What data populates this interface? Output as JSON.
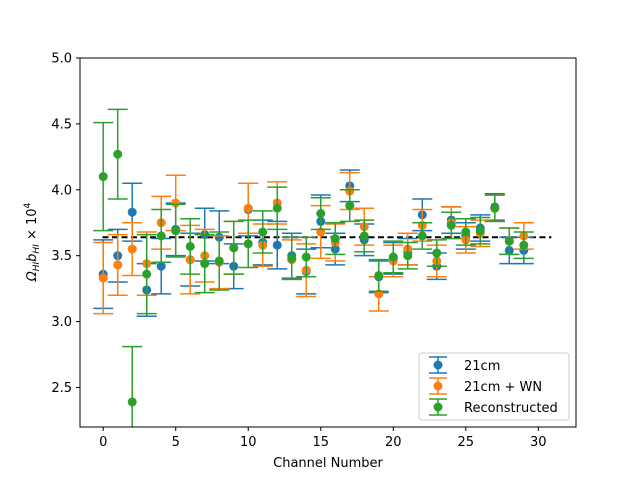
{
  "chart_data": {
    "type": "scatter",
    "title": "",
    "xlabel": "Channel Number",
    "ylabel": "Ω_HI b_HI × 10^4",
    "ylabel_parts": {
      "main": "Ω",
      "sub1": "HI",
      "mid": "b",
      "sub2": "HI",
      "times": " × 10",
      "sup": "4"
    },
    "xlim": [
      -1.6,
      32.6
    ],
    "ylim": [
      2.2,
      5.0
    ],
    "xticks": [
      0,
      5,
      10,
      15,
      20,
      25,
      30
    ],
    "xtick_labels": [
      "0",
      "5",
      "10",
      "15",
      "20",
      "25",
      "30"
    ],
    "yticks": [
      2.5,
      3.0,
      3.5,
      4.0,
      4.5,
      5.0
    ],
    "ytick_labels": [
      "2.5",
      "3.0",
      "3.5",
      "4.0",
      "4.5",
      "5.0"
    ],
    "grid": false,
    "legend_position": "lower-right",
    "reference_line": {
      "y": 3.64,
      "style": "dashed",
      "color": "#000000"
    },
    "series": [
      {
        "name": "21cm",
        "color": "#1f77b4",
        "x": [
          0,
          1,
          2,
          3,
          4,
          5,
          6,
          7,
          8,
          9,
          10,
          11,
          12,
          13,
          14,
          15,
          16,
          17,
          18,
          19,
          20,
          21,
          22,
          23,
          24,
          25,
          26,
          27,
          28,
          29
        ],
        "y": [
          3.36,
          3.5,
          3.83,
          3.24,
          3.42,
          3.7,
          3.47,
          3.66,
          3.64,
          3.42,
          3.85,
          3.6,
          3.58,
          3.5,
          3.38,
          3.76,
          3.55,
          4.03,
          3.62,
          3.34,
          3.48,
          3.53,
          3.81,
          3.42,
          3.77,
          3.65,
          3.71,
          3.87,
          3.54,
          3.54
        ],
        "yerr": [
          0.26,
          0.2,
          0.22,
          0.2,
          0.21,
          0.2,
          0.2,
          0.2,
          0.2,
          0.17,
          0.2,
          0.17,
          0.18,
          0.17,
          0.17,
          0.2,
          0.12,
          0.12,
          0.12,
          0.12,
          0.12,
          0.1,
          0.12,
          0.1,
          0.1,
          0.1,
          0.1,
          0.1,
          0.1,
          0.1
        ]
      },
      {
        "name": "21cm + WN",
        "color": "#ff7f0e",
        "x": [
          0,
          1,
          2,
          3,
          4,
          5,
          6,
          7,
          8,
          9,
          10,
          11,
          12,
          13,
          14,
          15,
          16,
          17,
          18,
          19,
          20,
          21,
          22,
          23,
          24,
          25,
          26,
          27,
          28,
          29
        ],
        "y": [
          3.33,
          3.43,
          3.55,
          3.44,
          3.75,
          3.9,
          3.47,
          3.5,
          3.45,
          3.56,
          3.86,
          3.58,
          3.9,
          3.47,
          3.39,
          3.68,
          3.6,
          3.99,
          3.72,
          3.21,
          3.46,
          3.55,
          3.73,
          3.46,
          3.75,
          3.62,
          3.67,
          3.86,
          3.61,
          3.65
        ],
        "yerr": [
          0.27,
          0.23,
          0.2,
          0.24,
          0.2,
          0.21,
          0.26,
          0.2,
          0.2,
          0.2,
          0.19,
          0.16,
          0.16,
          0.15,
          0.2,
          0.2,
          0.14,
          0.14,
          0.14,
          0.13,
          0.12,
          0.12,
          0.12,
          0.12,
          0.12,
          0.1,
          0.1,
          0.1,
          0.1,
          0.1
        ]
      },
      {
        "name": "Reconstructed",
        "color": "#2ca02c",
        "x": [
          0,
          1,
          2,
          3,
          4,
          5,
          6,
          7,
          8,
          9,
          10,
          11,
          12,
          13,
          14,
          15,
          16,
          17,
          18,
          19,
          20,
          21,
          22,
          23,
          24,
          25,
          26,
          27,
          28,
          29
        ],
        "y": [
          4.1,
          4.27,
          2.39,
          3.36,
          3.65,
          3.69,
          3.57,
          3.44,
          3.46,
          3.56,
          3.59,
          3.68,
          3.86,
          3.48,
          3.49,
          3.82,
          3.63,
          3.88,
          3.65,
          3.35,
          3.49,
          3.5,
          3.65,
          3.52,
          3.73,
          3.68,
          3.69,
          3.86,
          3.61,
          3.58
        ],
        "yerr": [
          0.41,
          0.34,
          0.42,
          0.3,
          0.2,
          0.2,
          0.21,
          0.22,
          0.22,
          0.2,
          0.18,
          0.16,
          0.16,
          0.16,
          0.15,
          0.12,
          0.12,
          0.12,
          0.12,
          0.12,
          0.12,
          0.1,
          0.1,
          0.1,
          0.1,
          0.1,
          0.1,
          0.1,
          0.1,
          0.1
        ]
      }
    ]
  }
}
